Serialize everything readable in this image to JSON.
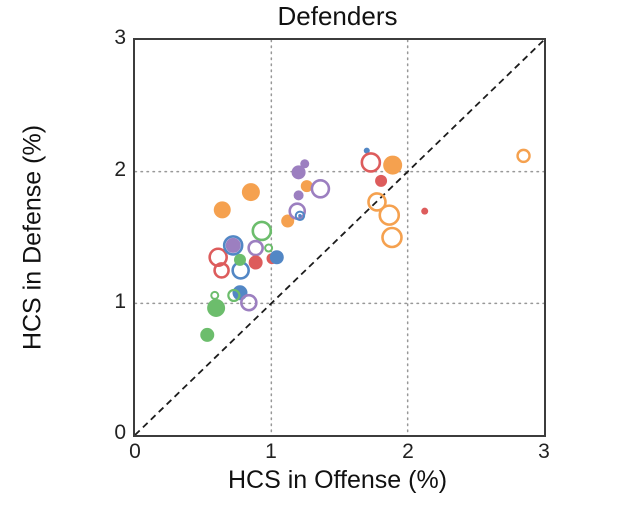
{
  "chart_data": {
    "type": "scatter",
    "title": "Defenders",
    "xlabel": "HCS in Offense (%)",
    "ylabel": "HCS in Defense (%)",
    "xlim": [
      0,
      3
    ],
    "ylim": [
      0,
      3
    ],
    "x_ticks": [
      "0",
      "1",
      "2",
      "3"
    ],
    "y_ticks": [
      "0",
      "1",
      "2",
      "3"
    ],
    "grid": {
      "x": [
        1,
        2
      ],
      "y": [
        1,
        2
      ],
      "style": "dotted"
    },
    "identity_line": true,
    "legend": "none",
    "palette": {
      "blue": "#5287c5",
      "orange": "#f5a14f",
      "green": "#6cbd6c",
      "red": "#dd5c5c",
      "purple": "#9c7fc0"
    },
    "frame_color": "#3c3c3c",
    "grid_color": "#989898",
    "points": [
      {
        "x": 0.64,
        "y": 1.71,
        "color": "orange",
        "style": "filled",
        "r": 8.5
      },
      {
        "x": 0.85,
        "y": 1.845,
        "color": "orange",
        "style": "filled",
        "r": 9
      },
      {
        "x": 1.12,
        "y": 1.625,
        "color": "orange",
        "style": "filled",
        "r": 6.5
      },
      {
        "x": 0.93,
        "y": 1.55,
        "color": "green",
        "style": "open",
        "r": 9
      },
      {
        "x": 0.61,
        "y": 1.35,
        "color": "red",
        "style": "open",
        "r": 8.5
      },
      {
        "x": 0.635,
        "y": 1.25,
        "color": "red",
        "style": "open",
        "r": 7
      },
      {
        "x": 0.72,
        "y": 1.44,
        "color": "blue",
        "style": "open",
        "r": 9
      },
      {
        "x": 0.72,
        "y": 1.44,
        "color": "purple",
        "style": "filled",
        "r": 7.5
      },
      {
        "x": 0.885,
        "y": 1.42,
        "color": "purple",
        "style": "open",
        "r": 7
      },
      {
        "x": 0.98,
        "y": 1.42,
        "color": "green",
        "style": "open",
        "r": 3.5,
        "sw": 2
      },
      {
        "x": 0.775,
        "y": 1.25,
        "color": "blue",
        "style": "open",
        "r": 8
      },
      {
        "x": 0.77,
        "y": 1.33,
        "color": "green",
        "style": "filled",
        "r": 6
      },
      {
        "x": 0.885,
        "y": 1.31,
        "color": "red",
        "style": "filled",
        "r": 7
      },
      {
        "x": 1.005,
        "y": 1.34,
        "color": "red",
        "style": "filled",
        "r": 5.5
      },
      {
        "x": 1.04,
        "y": 1.35,
        "color": "blue",
        "style": "filled",
        "r": 7
      },
      {
        "x": 0.77,
        "y": 1.08,
        "color": "blue",
        "style": "filled",
        "r": 7.5
      },
      {
        "x": 0.725,
        "y": 1.06,
        "color": "green",
        "style": "open",
        "r": 5.5,
        "sw": 2.2
      },
      {
        "x": 0.585,
        "y": 1.06,
        "color": "green",
        "style": "open",
        "r": 3.5,
        "sw": 2
      },
      {
        "x": 0.835,
        "y": 1.005,
        "color": "purple",
        "style": "open",
        "r": 7.5
      },
      {
        "x": 0.595,
        "y": 0.965,
        "color": "green",
        "style": "filled",
        "r": 9
      },
      {
        "x": 0.53,
        "y": 0.76,
        "color": "green",
        "style": "filled",
        "r": 7
      },
      {
        "x": 1.2,
        "y": 1.995,
        "color": "purple",
        "style": "filled",
        "r": 7
      },
      {
        "x": 1.245,
        "y": 2.06,
        "color": "purple",
        "style": "filled",
        "r": 4.5
      },
      {
        "x": 1.26,
        "y": 1.89,
        "color": "orange",
        "style": "filled",
        "r": 6
      },
      {
        "x": 1.2,
        "y": 1.82,
        "color": "purple",
        "style": "filled",
        "r": 5
      },
      {
        "x": 1.36,
        "y": 1.87,
        "color": "purple",
        "style": "open",
        "r": 8.5
      },
      {
        "x": 1.19,
        "y": 1.7,
        "color": "purple",
        "style": "open",
        "r": 7.5
      },
      {
        "x": 1.21,
        "y": 1.665,
        "color": "blue",
        "style": "filled",
        "r": 1.8
      },
      {
        "x": 1.21,
        "y": 1.665,
        "color": "blue",
        "style": "open",
        "r": 4.2,
        "sw": 2
      },
      {
        "x": 1.7,
        "y": 2.16,
        "color": "blue",
        "style": "filled",
        "r": 3
      },
      {
        "x": 1.73,
        "y": 2.07,
        "color": "red",
        "style": "open",
        "r": 9
      },
      {
        "x": 1.89,
        "y": 2.05,
        "color": "orange",
        "style": "filled",
        "r": 9.5
      },
      {
        "x": 1.805,
        "y": 1.93,
        "color": "red",
        "style": "filled",
        "r": 6
      },
      {
        "x": 1.775,
        "y": 1.77,
        "color": "orange",
        "style": "open",
        "r": 8.5
      },
      {
        "x": 1.865,
        "y": 1.67,
        "color": "orange",
        "style": "open",
        "r": 9.5
      },
      {
        "x": 1.885,
        "y": 1.5,
        "color": "orange",
        "style": "open",
        "r": 9.5
      },
      {
        "x": 2.125,
        "y": 1.7,
        "color": "red",
        "style": "filled",
        "r": 3.5
      },
      {
        "x": 2.85,
        "y": 2.12,
        "color": "orange",
        "style": "open",
        "r": 6,
        "sw": 2.4
      }
    ]
  }
}
